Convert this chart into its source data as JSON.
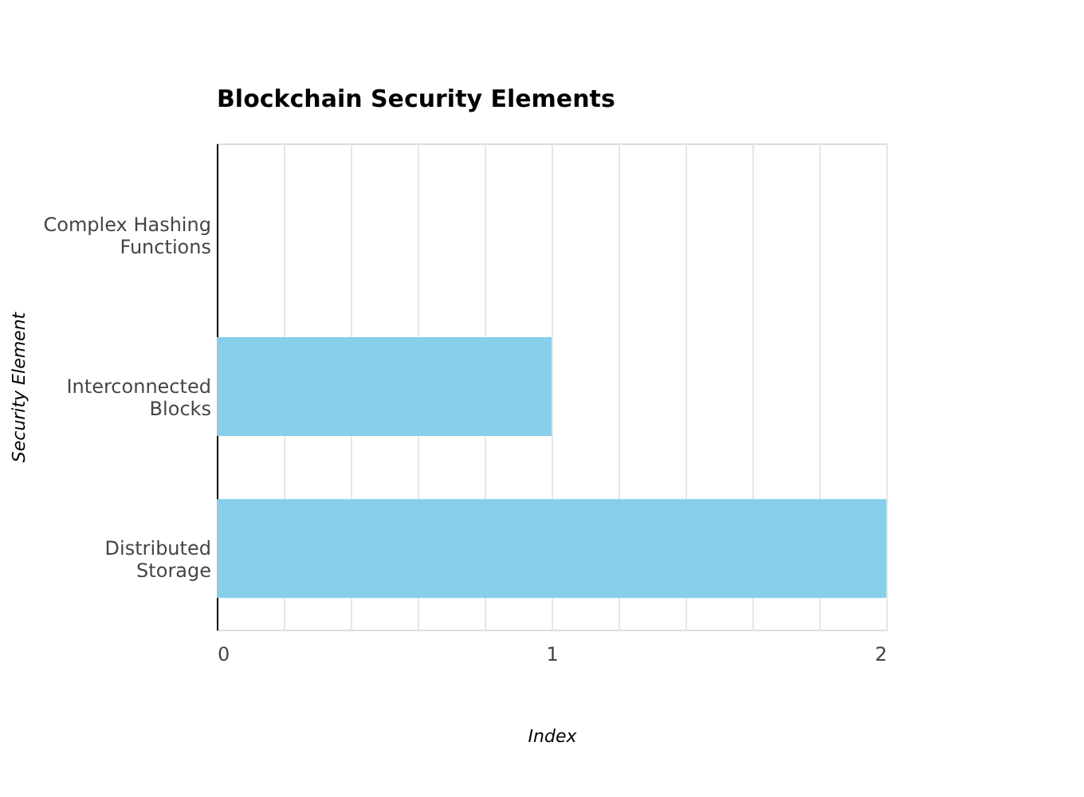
{
  "chart_data": {
    "type": "bar",
    "orientation": "horizontal",
    "title": "Blockchain Security Elements",
    "xlabel": "Index",
    "ylabel": "Security Element",
    "categories": [
      "Complex Hashing Functions",
      "Interconnected Blocks",
      "Distributed Storage"
    ],
    "values": [
      0,
      1,
      2
    ],
    "color": "#87ceeb",
    "xlim": [
      0,
      2
    ],
    "xticks": [
      0,
      {
        "value": 0.2,
        "label": null
      },
      {
        "value": 0.4,
        "label": null
      },
      {
        "value": 0.6,
        "label": null
      },
      {
        "value": 0.8,
        "label": null
      },
      1,
      {
        "value": 1.2,
        "label": null
      },
      {
        "value": 1.4,
        "label": null
      },
      {
        "value": 1.6,
        "label": null
      },
      {
        "value": 1.8,
        "label": null
      },
      2
    ],
    "grid": "x"
  }
}
